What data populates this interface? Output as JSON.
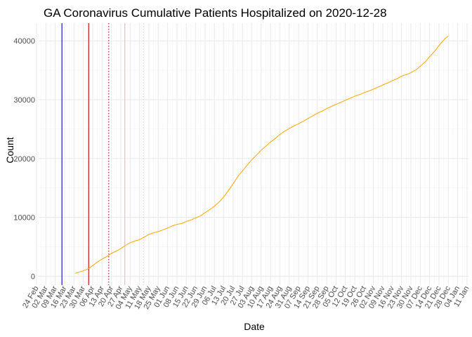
{
  "chart_data": {
    "type": "line",
    "title": "GA Coronavirus Cumulative Patients Hospitalized on 2020-12-28",
    "xlabel": "Date",
    "ylabel": "Count",
    "x_range": [
      "2020-02-24",
      "2021-01-11"
    ],
    "ylim": [
      -1500,
      43000
    ],
    "y_ticks": [
      0,
      10000,
      20000,
      30000,
      40000
    ],
    "y_tick_labels": [
      "0",
      "10000",
      "20000",
      "30000",
      "40000"
    ],
    "x_ticks": [
      "2020-02-24",
      "2020-03-02",
      "2020-03-09",
      "2020-03-16",
      "2020-03-23",
      "2020-03-30",
      "2020-04-06",
      "2020-04-13",
      "2020-04-20",
      "2020-04-27",
      "2020-05-04",
      "2020-05-11",
      "2020-05-18",
      "2020-05-25",
      "2020-06-01",
      "2020-06-08",
      "2020-06-15",
      "2020-06-22",
      "2020-06-29",
      "2020-07-06",
      "2020-07-13",
      "2020-07-20",
      "2020-07-27",
      "2020-08-03",
      "2020-08-10",
      "2020-08-17",
      "2020-08-24",
      "2020-08-31",
      "2020-09-07",
      "2020-09-14",
      "2020-09-21",
      "2020-09-28",
      "2020-10-05",
      "2020-10-12",
      "2020-10-19",
      "2020-10-26",
      "2020-11-02",
      "2020-11-09",
      "2020-11-16",
      "2020-11-23",
      "2020-11-30",
      "2020-12-07",
      "2020-12-14",
      "2020-12-21",
      "2020-12-28",
      "2021-01-04",
      "2021-01-11"
    ],
    "x_tick_labels": [
      "24 Feb",
      "02 Mar",
      "09 Mar",
      "16 Mar",
      "23 Mar",
      "30 Mar",
      "06 Apr",
      "13 Apr",
      "20 Apr",
      "27 Apr",
      "04 May",
      "11 May",
      "18 May",
      "25 May",
      "01 Jun",
      "08 Jun",
      "15 Jun",
      "22 Jun",
      "29 Jun",
      "06 Jul",
      "13 Jul",
      "20 Jul",
      "27 Jul",
      "03 Aug",
      "10 Aug",
      "17 Aug",
      "24 Aug",
      "31 Aug",
      "07 Sep",
      "14 Sep",
      "21 Sep",
      "28 Sep",
      "05 Oct",
      "12 Oct",
      "19 Oct",
      "26 Oct",
      "02 Nov",
      "09 Nov",
      "16 Nov",
      "23 Nov",
      "30 Nov",
      "07 Dec",
      "14 Dec",
      "21 Dec",
      "28 Dec",
      "04 Jan",
      "11 Jan"
    ],
    "grid": true,
    "vlines": [
      {
        "date": "2020-03-14",
        "color": "#0000cc",
        "style": "solid"
      },
      {
        "date": "2020-04-03",
        "color": "#cc0000",
        "style": "solid"
      },
      {
        "date": "2020-04-18",
        "color": "#cc0000",
        "style": "dotted"
      },
      {
        "date": "2020-04-30",
        "color": "#ffb6c1",
        "style": "solid"
      },
      {
        "date": "2020-05-14",
        "color": "#ffb6c1",
        "style": "dotted"
      }
    ],
    "series": [
      {
        "color": "#ffa500",
        "points": [
          [
            "2020-03-24",
            500
          ],
          [
            "2020-03-27",
            700
          ],
          [
            "2020-03-31",
            1000
          ],
          [
            "2020-04-03",
            1300
          ],
          [
            "2020-04-06",
            1800
          ],
          [
            "2020-04-10",
            2500
          ],
          [
            "2020-04-13",
            2900
          ],
          [
            "2020-04-17",
            3400
          ],
          [
            "2020-04-20",
            3900
          ],
          [
            "2020-04-24",
            4300
          ],
          [
            "2020-04-27",
            4700
          ],
          [
            "2020-05-01",
            5300
          ],
          [
            "2020-05-04",
            5700
          ],
          [
            "2020-05-08",
            6000
          ],
          [
            "2020-05-11",
            6200
          ],
          [
            "2020-05-15",
            6700
          ],
          [
            "2020-05-18",
            7100
          ],
          [
            "2020-05-22",
            7400
          ],
          [
            "2020-05-25",
            7600
          ],
          [
            "2020-05-29",
            7900
          ],
          [
            "2020-06-01",
            8200
          ],
          [
            "2020-06-05",
            8600
          ],
          [
            "2020-06-08",
            8800
          ],
          [
            "2020-06-12",
            9000
          ],
          [
            "2020-06-15",
            9300
          ],
          [
            "2020-06-19",
            9600
          ],
          [
            "2020-06-22",
            9900
          ],
          [
            "2020-06-26",
            10300
          ],
          [
            "2020-06-29",
            10800
          ],
          [
            "2020-07-03",
            11400
          ],
          [
            "2020-07-06",
            11900
          ],
          [
            "2020-07-10",
            12700
          ],
          [
            "2020-07-13",
            13500
          ],
          [
            "2020-07-17",
            14700
          ],
          [
            "2020-07-20",
            15700
          ],
          [
            "2020-07-24",
            17100
          ],
          [
            "2020-07-27",
            17900
          ],
          [
            "2020-07-31",
            19000
          ],
          [
            "2020-08-03",
            19800
          ],
          [
            "2020-08-07",
            20700
          ],
          [
            "2020-08-10",
            21400
          ],
          [
            "2020-08-14",
            22200
          ],
          [
            "2020-08-17",
            22800
          ],
          [
            "2020-08-21",
            23500
          ],
          [
            "2020-08-24",
            24100
          ],
          [
            "2020-08-28",
            24700
          ],
          [
            "2020-08-31",
            25100
          ],
          [
            "2020-09-04",
            25600
          ],
          [
            "2020-09-07",
            25900
          ],
          [
            "2020-09-11",
            26400
          ],
          [
            "2020-09-14",
            26800
          ],
          [
            "2020-09-18",
            27300
          ],
          [
            "2020-09-21",
            27700
          ],
          [
            "2020-09-25",
            28100
          ],
          [
            "2020-09-28",
            28500
          ],
          [
            "2020-10-02",
            28900
          ],
          [
            "2020-10-05",
            29200
          ],
          [
            "2020-10-09",
            29600
          ],
          [
            "2020-10-12",
            29900
          ],
          [
            "2020-10-16",
            30300
          ],
          [
            "2020-10-19",
            30600
          ],
          [
            "2020-10-23",
            30900
          ],
          [
            "2020-10-26",
            31200
          ],
          [
            "2020-10-30",
            31500
          ],
          [
            "2020-11-02",
            31800
          ],
          [
            "2020-11-06",
            32200
          ],
          [
            "2020-11-09",
            32500
          ],
          [
            "2020-11-13",
            32900
          ],
          [
            "2020-11-16",
            33200
          ],
          [
            "2020-11-20",
            33600
          ],
          [
            "2020-11-23",
            34000
          ],
          [
            "2020-11-27",
            34300
          ],
          [
            "2020-11-30",
            34600
          ],
          [
            "2020-12-04",
            35100
          ],
          [
            "2020-12-07",
            35700
          ],
          [
            "2020-12-11",
            36500
          ],
          [
            "2020-12-14",
            37300
          ],
          [
            "2020-12-18",
            38300
          ],
          [
            "2020-12-21",
            39200
          ],
          [
            "2020-12-24",
            40000
          ],
          [
            "2020-12-26",
            40500
          ],
          [
            "2020-12-28",
            40800
          ]
        ]
      }
    ]
  }
}
